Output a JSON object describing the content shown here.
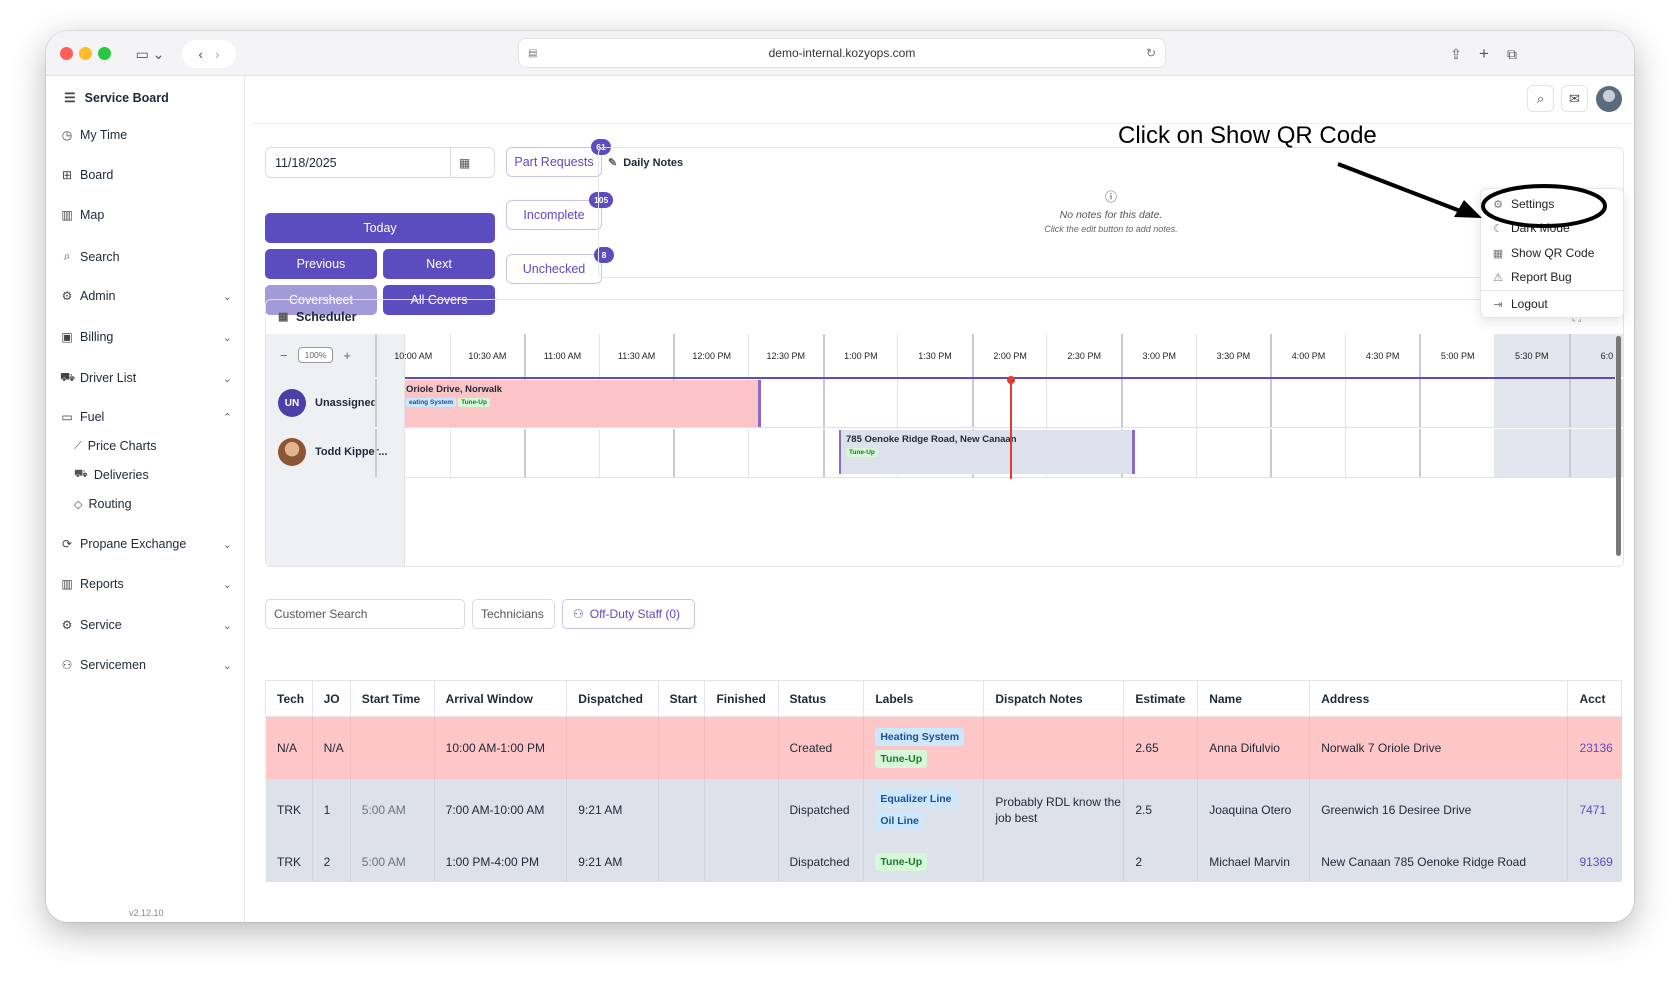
{
  "browser": {
    "url": "demo-internal.kozyops.com"
  },
  "app": {
    "title": "Service Board",
    "version": "v2.12.10"
  },
  "sidebar": {
    "items": [
      {
        "label": "My Time"
      },
      {
        "label": "Board"
      },
      {
        "label": "Map"
      },
      {
        "label": "Search"
      },
      {
        "label": "Admin"
      },
      {
        "label": "Billing"
      },
      {
        "label": "Driver List"
      },
      {
        "label": "Fuel"
      },
      {
        "label": "Propane Exchange"
      },
      {
        "label": "Reports"
      },
      {
        "label": "Service"
      },
      {
        "label": "Servicemen"
      }
    ],
    "fuel_sub": [
      {
        "label": "Price Charts"
      },
      {
        "label": "Deliveries"
      },
      {
        "label": "Routing"
      }
    ]
  },
  "controls": {
    "date": "11/18/2025",
    "today": "Today",
    "previous": "Previous",
    "next": "Next",
    "coversheet": "Coversheet",
    "all_covers": "All Covers"
  },
  "counters": {
    "part_requests": {
      "label": "Part Requests",
      "count": "61"
    },
    "incomplete": {
      "label": "Incomplete",
      "count": "105"
    },
    "unchecked": {
      "label": "Unchecked",
      "count": "8"
    }
  },
  "daily_notes": {
    "title": "Daily Notes",
    "empty": "No notes for this date.",
    "hint": "Click the edit button to add notes."
  },
  "scheduler": {
    "title": "Scheduler",
    "zoom": "100%",
    "times": [
      "10:00 AM",
      "10:30 AM",
      "11:00 AM",
      "11:30 AM",
      "12:00 PM",
      "12:30 PM",
      "1:00 PM",
      "1:30 PM",
      "2:00 PM",
      "2:30 PM",
      "3:00 PM",
      "3:30 PM",
      "4:00 PM",
      "4:30 PM",
      "5:00 PM",
      "5:30 PM",
      "6:0"
    ],
    "rows": [
      {
        "name": "Unassigned",
        "initials": "UN"
      },
      {
        "name": "Todd Kipper..."
      }
    ],
    "events": [
      {
        "title": "Oriole Drive, Norwalk",
        "tags": [
          "eating System",
          "Tune-Up"
        ]
      },
      {
        "title": "785 Oenoke Ridge Road, New Canaan",
        "tags": [
          "Tune-Up"
        ]
      }
    ]
  },
  "filters": {
    "customer_search": "Customer Search",
    "technicians": "Technicians",
    "off_duty": "Off-Duty Staff (0)"
  },
  "table": {
    "headers": [
      "Tech",
      "JO",
      "Start Time",
      "Arrival Window",
      "Dispatched",
      "Start",
      "Finished",
      "Status",
      "Labels",
      "Dispatch Notes",
      "Estimate",
      "Name",
      "Address",
      "Acct"
    ],
    "rows": [
      {
        "tech": "N/A",
        "jo": "N/A",
        "start_time": "",
        "arrival": "10:00 AM-1:00 PM",
        "dispatched": "",
        "start": "",
        "finished": "",
        "status": "Created",
        "labels": [
          "Heating System",
          "Tune-Up"
        ],
        "notes": "",
        "estimate": "2.65",
        "name": "Anna Difulvio",
        "address": "Norwalk 7 Oriole Drive",
        "acct": "23136"
      },
      {
        "tech": "TRK",
        "jo": "1",
        "start_time": "5:00 AM",
        "arrival": "7:00 AM-10:00 AM",
        "dispatched": "9:21 AM",
        "start": "",
        "finished": "",
        "status": "Dispatched",
        "labels": [
          "Equalizer Line",
          "Oil Line"
        ],
        "notes": "Probably RDL know the job best",
        "estimate": "2.5",
        "name": "Joaquina Otero",
        "address": "Greenwich 16 Desiree Drive",
        "acct": "7471"
      },
      {
        "tech": "TRK",
        "jo": "2",
        "start_time": "5:00 AM",
        "arrival": "1:00 PM-4:00 PM",
        "dispatched": "9:21 AM",
        "start": "",
        "finished": "",
        "status": "Dispatched",
        "labels": [
          "Tune-Up"
        ],
        "notes": "",
        "estimate": "2",
        "name": "Michael Marvin",
        "address": "New Canaan 785 Oenoke Ridge Road",
        "acct": "91369"
      }
    ]
  },
  "user_menu": {
    "items": [
      {
        "label": "Settings"
      },
      {
        "label": "Dark Mode"
      },
      {
        "label": "Show QR Code"
      },
      {
        "label": "Report Bug"
      },
      {
        "label": "Logout"
      }
    ]
  },
  "annotation": {
    "text": "Click on Show QR Code"
  }
}
